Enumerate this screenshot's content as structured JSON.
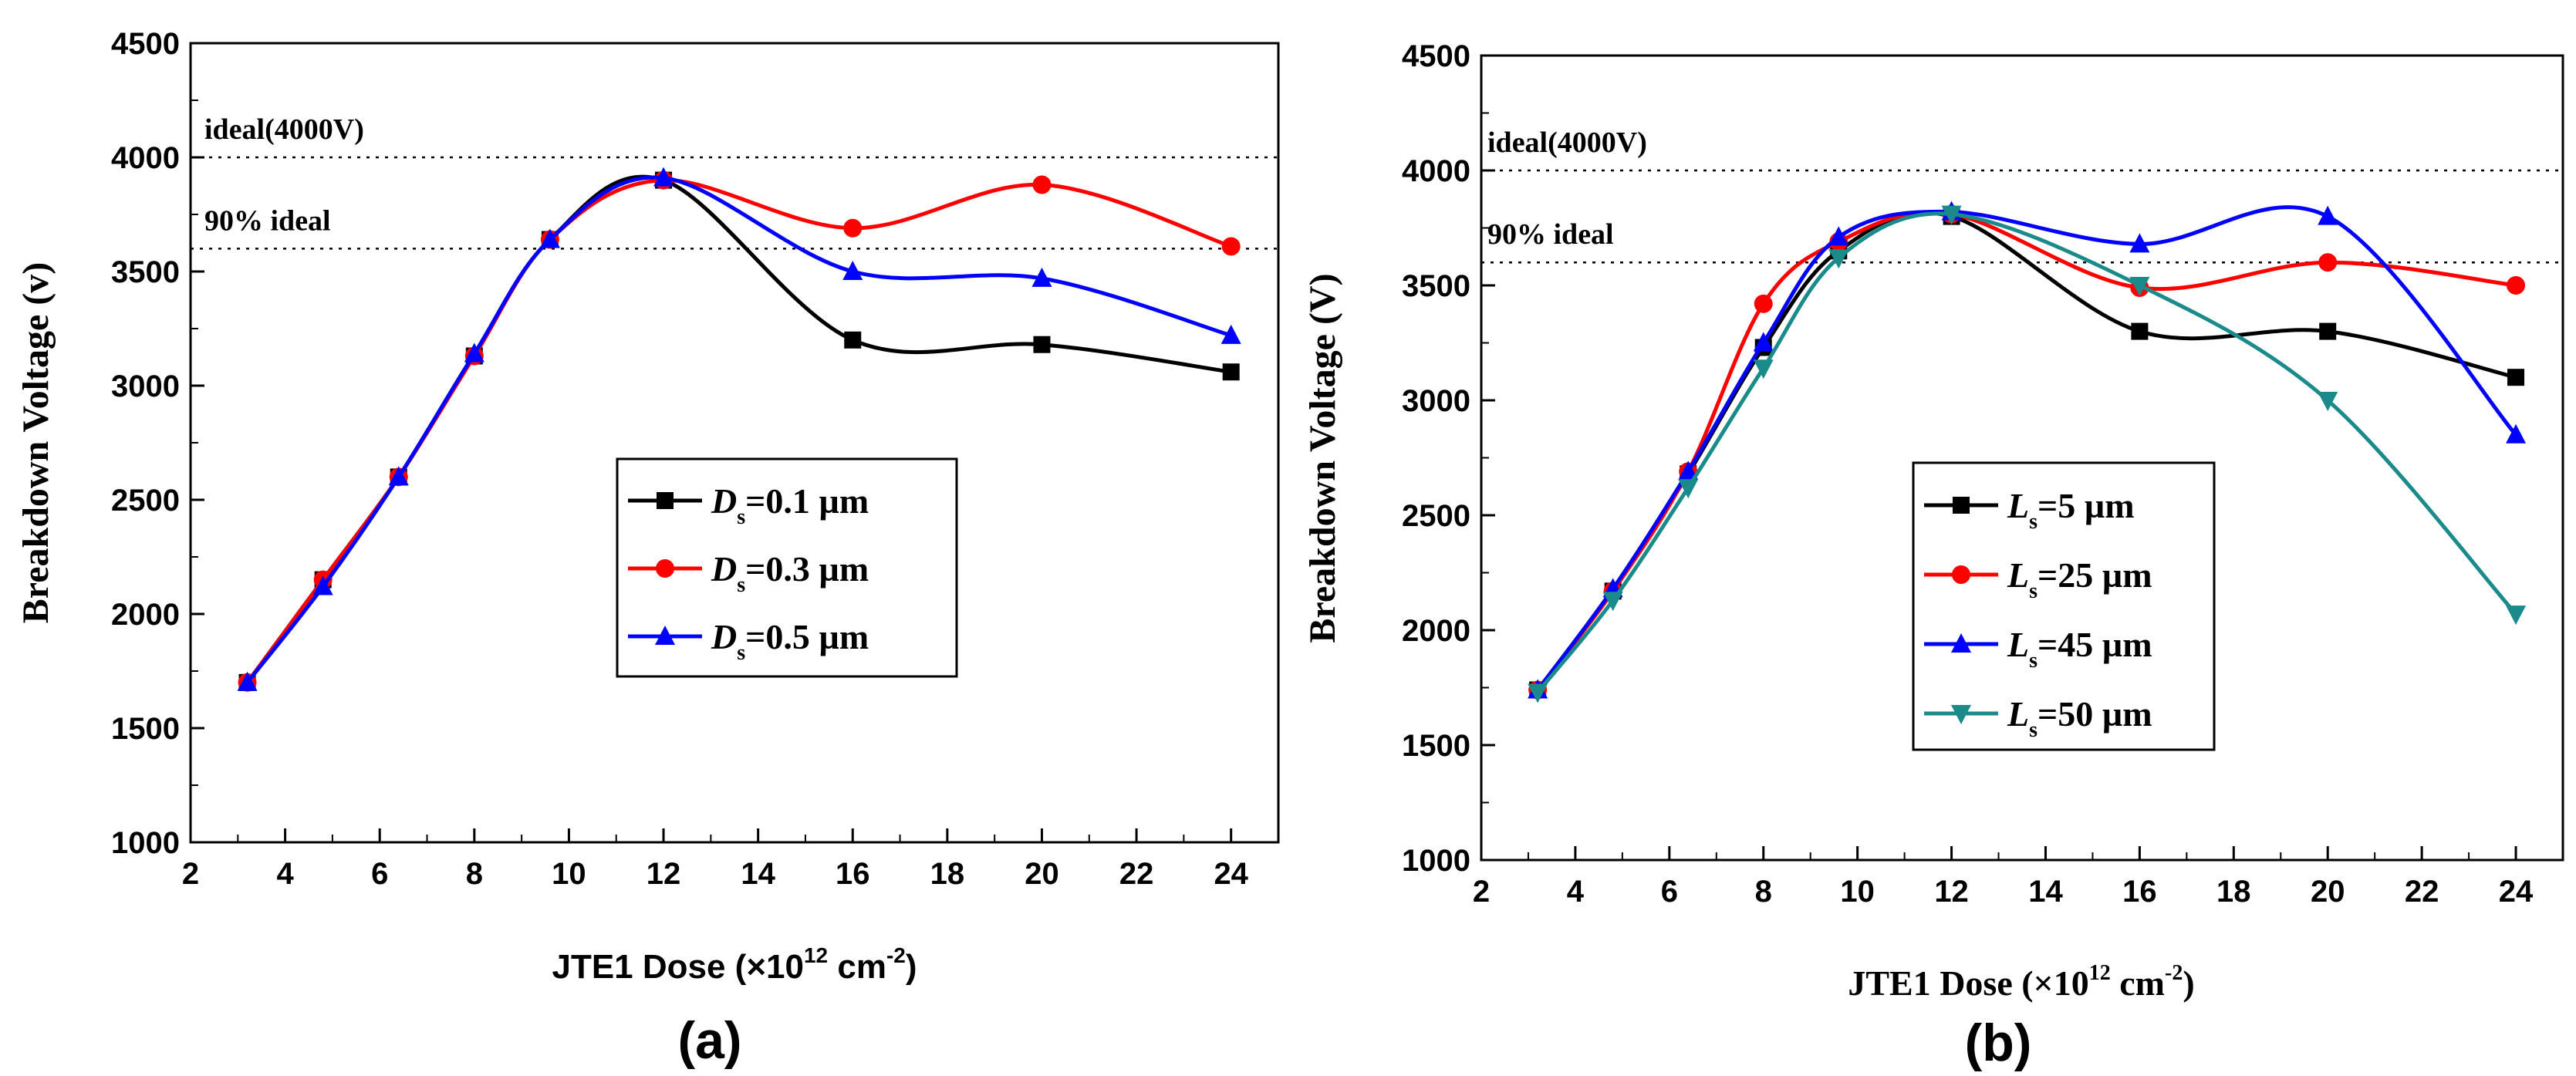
{
  "chart_data": [
    {
      "type": "line",
      "panel_label": "(a)",
      "xlabel": "JTE1 Dose (×10",
      "xlabel_sup": "12",
      "xlabel_tail": " cm",
      "xlabel_exp": "-2",
      "xlabel_close": ")",
      "ylabel": "Breakdown Voltage (v)",
      "xlim": [
        2,
        25
      ],
      "ylim": [
        1000,
        4500
      ],
      "xticks": [
        2,
        4,
        6,
        8,
        10,
        12,
        14,
        16,
        18,
        20,
        22,
        24
      ],
      "yticks": [
        1000,
        1500,
        2000,
        2500,
        3000,
        3500,
        4000,
        4500
      ],
      "reference_lines": [
        {
          "label": "ideal(4000V)",
          "y": 4000
        },
        {
          "label": "90% ideal",
          "y": 3600
        }
      ],
      "legend_position": "center",
      "series": [
        {
          "name_main": "D",
          "name_sub": "s",
          "name_tail": "=0.1 µm",
          "color": "#000000",
          "marker": "square",
          "x": [
            3.2,
            4.8,
            6.4,
            8.0,
            9.6,
            12.0,
            16.0,
            20.0,
            24.0
          ],
          "y": [
            1700,
            2150,
            2600,
            3130,
            3640,
            3900,
            3200,
            3180,
            3060
          ]
        },
        {
          "name_main": "D",
          "name_sub": "s",
          "name_tail": "=0.3 µm",
          "color": "#ff0000",
          "marker": "circle",
          "x": [
            3.2,
            4.8,
            6.4,
            8.0,
            9.6,
            12.0,
            16.0,
            20.0,
            24.0
          ],
          "y": [
            1700,
            2150,
            2600,
            3130,
            3640,
            3900,
            3690,
            3880,
            3610
          ]
        },
        {
          "name_main": "D",
          "name_sub": "s",
          "name_tail": "=0.5 µm",
          "color": "#0000ff",
          "marker": "triangle-up",
          "x": [
            3.2,
            4.8,
            6.4,
            8.0,
            9.6,
            12.0,
            16.0,
            20.0,
            24.0
          ],
          "y": [
            1700,
            2120,
            2600,
            3140,
            3640,
            3910,
            3500,
            3470,
            3220
          ]
        }
      ]
    },
    {
      "type": "line",
      "panel_label": "(b)",
      "xlabel": "JTE1 Dose (×10",
      "xlabel_sup": "12",
      "xlabel_tail": " cm",
      "xlabel_exp": "-2",
      "xlabel_close": ")",
      "ylabel": "Breakdown Voltage (V)",
      "xlim": [
        2,
        25
      ],
      "ylim": [
        1000,
        4500
      ],
      "xticks": [
        2,
        4,
        6,
        8,
        10,
        12,
        14,
        16,
        18,
        20,
        22,
        24
      ],
      "yticks": [
        1000,
        1500,
        2000,
        2500,
        3000,
        3500,
        4000,
        4500
      ],
      "reference_lines": [
        {
          "label": "ideal(4000V)",
          "y": 4000
        },
        {
          "label": "90% ideal",
          "y": 3600
        }
      ],
      "legend_position": "center-right",
      "series": [
        {
          "name_main": "L",
          "name_sub": "s",
          "name_tail": "=5 µm",
          "color": "#000000",
          "marker": "square",
          "x": [
            3.2,
            4.8,
            6.4,
            8.0,
            9.6,
            12.0,
            16.0,
            20.0,
            24.0
          ],
          "y": [
            1740,
            2170,
            2680,
            3230,
            3650,
            3800,
            3300,
            3300,
            3100
          ]
        },
        {
          "name_main": "L",
          "name_sub": "s",
          "name_tail": "=25 µm",
          "color": "#ff0000",
          "marker": "circle",
          "x": [
            3.2,
            4.8,
            6.4,
            8.0,
            9.6,
            12.0,
            16.0,
            20.0,
            24.0
          ],
          "y": [
            1740,
            2170,
            2690,
            3420,
            3690,
            3810,
            3490,
            3600,
            3500
          ]
        },
        {
          "name_main": "L",
          "name_sub": "s",
          "name_tail": "=45 µm",
          "color": "#0000ff",
          "marker": "triangle-up",
          "x": [
            3.2,
            4.8,
            6.4,
            8.0,
            9.6,
            12.0,
            16.0,
            20.0,
            24.0
          ],
          "y": [
            1740,
            2180,
            2690,
            3250,
            3710,
            3820,
            3680,
            3800,
            2850
          ]
        },
        {
          "name_main": "L",
          "name_sub": "s",
          "name_tail": "=50 µm",
          "color": "#1a8a8a",
          "marker": "triangle-down",
          "x": [
            3.2,
            4.8,
            6.4,
            8.0,
            9.6,
            12.0,
            16.0,
            20.0,
            24.0
          ],
          "y": [
            1730,
            2130,
            2620,
            3140,
            3620,
            3810,
            3500,
            3000,
            2070
          ]
        }
      ]
    }
  ]
}
